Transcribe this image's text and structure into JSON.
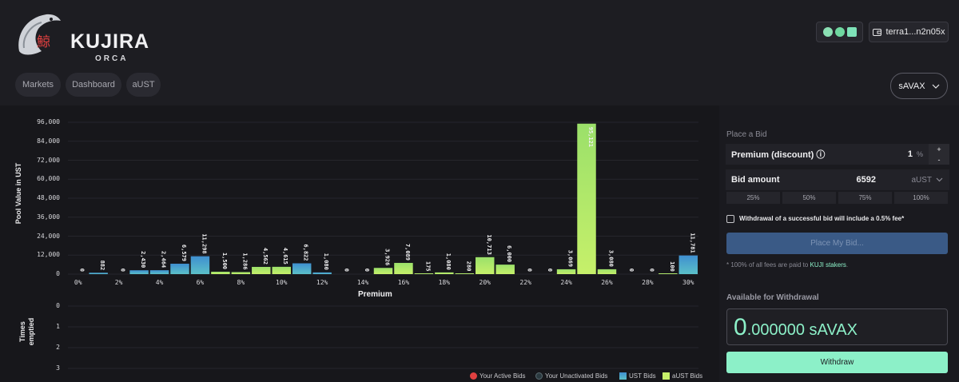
{
  "brand": {
    "name": "KUJIRA",
    "sub": "ORCA",
    "kanji": "鯨"
  },
  "wallet": {
    "address": "terra1...n2n05x"
  },
  "nav": [
    {
      "label": "Markets"
    },
    {
      "label": "Dashboard"
    },
    {
      "label": "aUST"
    }
  ],
  "asset": {
    "selected": "sAVAX"
  },
  "bid": {
    "section_title": "Place a Bid",
    "premium_label": "Premium (discount) ⓘ",
    "premium_value": "1",
    "premium_unit": "%",
    "plus": "+",
    "minus": "-",
    "amount_label": "Bid amount",
    "amount_value": "6592",
    "amount_denom": "aUST",
    "percent_buttons": [
      "25%",
      "50%",
      "75%",
      "100%"
    ],
    "fee_note": "Withdrawal of a successful bid will include a 0.5% fee*",
    "place_label": "Place My Bid...",
    "stakers_note_prefix": "* 100% of all fees are paid to ",
    "stakers_link": "KUJI stakers",
    "stakers_note_suffix": "."
  },
  "withdrawal": {
    "title": "Available for Withdrawal",
    "int_part": "0",
    "dec_part": ".000000",
    "denom": "sAVAX",
    "withdraw_label": "Withdraw"
  },
  "colors": {
    "ust_top": "#3f8fd0",
    "ust_bottom": "#5bc0c8",
    "aust_top": "#9be06a",
    "aust_bottom": "#c6f06a",
    "accent": "#8cf0c8"
  },
  "chart_data": {
    "type": "bar",
    "ylabel": "Pool Value in UST",
    "xlabel": "Premium",
    "ylim": [
      0,
      96000
    ],
    "yticks": [
      "96,000",
      "84,000",
      "72,000",
      "60,000",
      "48,000",
      "36,000",
      "24,000",
      "12,000",
      "0"
    ],
    "xticks": [
      "0%",
      "2%",
      "4%",
      "6%",
      "8%",
      "10%",
      "12%",
      "14%",
      "16%",
      "18%",
      "20%",
      "22%",
      "24%",
      "26%",
      "28%",
      "30%"
    ],
    "categories": [
      "0%",
      "1%",
      "2%",
      "3%",
      "4%",
      "5%",
      "6%",
      "7%",
      "8%",
      "9%",
      "10%",
      "11%",
      "12%",
      "13%",
      "14%",
      "15%",
      "16%",
      "17%",
      "18%",
      "19%",
      "20%",
      "21%",
      "22%",
      "23%",
      "24%",
      "25%",
      "26%",
      "27%",
      "28%",
      "29%",
      "30%"
    ],
    "series": [
      {
        "name": "UST Bids",
        "values": [
          0,
          882,
          0,
          2430,
          2464,
          6579,
          11298,
          0,
          0,
          0,
          0,
          6822,
          1080,
          0,
          0,
          0,
          0,
          0,
          0,
          0,
          0,
          0,
          0,
          0,
          0,
          0,
          0,
          0,
          0,
          0,
          11781
        ]
      },
      {
        "name": "aUST Bids",
        "values": [
          0,
          0,
          0,
          0,
          0,
          0,
          0,
          1500,
          1286,
          4562,
          4615,
          0,
          0,
          0,
          0,
          3926,
          7089,
          175,
          1080,
          280,
          10713,
          6000,
          0,
          0,
          3069,
          95121,
          3080,
          0,
          0,
          100,
          0
        ]
      }
    ],
    "bar_labels": [
      "0",
      "882",
      "0",
      "2,430",
      "2,464",
      "6,579",
      "11,298",
      "1,500",
      "1,286",
      "4,562",
      "4,615",
      "6,822",
      "1,080",
      "0",
      "0",
      "3,926",
      "7,089",
      "175",
      "1,080",
      "280",
      "10,713",
      "6,000",
      "0",
      "0",
      "3,069",
      "95,121",
      "3,080",
      "0",
      "0",
      "100",
      "11,781"
    ],
    "times_emptied": {
      "ylabel": "Times emptied",
      "yticks": [
        "0",
        "1",
        "2",
        "3"
      ]
    },
    "legend": [
      "Your Active Bids",
      "Your Unactivated Bids",
      "UST Bids",
      "aUST Bids"
    ]
  }
}
